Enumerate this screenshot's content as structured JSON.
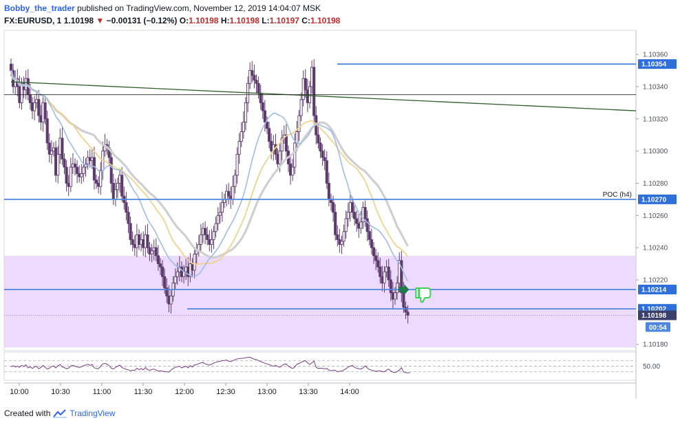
{
  "header": {
    "author": "Bobby_the_trader",
    "publish_text": "published on TradingView.com, November 12, 2019 14:04:07 MSK"
  },
  "ohlc": {
    "symbol": "FX:EURUSD, 1",
    "last": "1.10198",
    "arrow": "▼",
    "change": "−0.00131 (−0.12%)",
    "o_label": "O:",
    "o": "1.10198",
    "h_label": "H:",
    "h": "1.10198",
    "l_label": "L:",
    "l": "1.10197",
    "c_label": "C:",
    "c": "1.10198"
  },
  "footer": {
    "created_with": "Created with",
    "brand": "TradingView",
    "icon": "tradingview-cloud-icon"
  },
  "colors": {
    "candle": "#5d3a6e",
    "zone": "#e9d5fb",
    "level_line": "#4f86e0",
    "trend_line": "#2e5d2a",
    "sma_gray": "#cfcfcf",
    "sma_yellow": "#f2d28c",
    "sma_blue": "#9fbce8",
    "rsi": "#7a3b86",
    "label_bg": "#2f6fdb",
    "arrow_green": "#1f7a4a",
    "thumb_green": "#39d353"
  },
  "chart_data": {
    "type": "candlestick",
    "title": "",
    "x_ticks": [
      "10:00",
      "10:30",
      "11:00",
      "11:30",
      "12:00",
      "12:30",
      "13:00",
      "13:30",
      "14:00"
    ],
    "y_ticks": [
      "1.10360",
      "1.10340",
      "1.10320",
      "1.10300",
      "1.10280",
      "1.10260",
      "1.10240",
      "1.10220",
      "1.10180"
    ],
    "ylim": [
      1.10176,
      1.10375
    ],
    "price_labels": [
      {
        "name": "resistance",
        "value": 1.10354,
        "text": "1.10354"
      },
      {
        "name": "poc",
        "value": 1.1027,
        "text": "1.10270"
      },
      {
        "name": "level-mid",
        "value": 1.10214,
        "text": "1.10214"
      },
      {
        "name": "level-low",
        "value": 1.10202,
        "text": "1.10202"
      },
      {
        "name": "last-price",
        "value": 1.10198,
        "text": "1.10198"
      }
    ],
    "countdown": "00:54",
    "poc_text": "POC (h4)",
    "zone": {
      "top": 1.10235,
      "bottom": 1.10178
    },
    "trendline": {
      "from": {
        "time": "09:54",
        "price": 1.10343
      },
      "to": {
        "time": "14:48",
        "price": 1.10325
      }
    },
    "thin_hline": 1.10335,
    "rsi_level_label": "50.00",
    "rsi_levels": [
      70,
      50,
      30
    ],
    "close_series_step_min": 1,
    "close_series_start": "09:54",
    "closes": [
      1.1035,
      1.1034,
      1.10345,
      1.1034,
      1.1033,
      1.10342,
      1.10338,
      1.10345,
      1.10335,
      1.1033,
      1.10325,
      1.1033,
      1.10332,
      1.10322,
      1.10318,
      1.1033,
      1.1032,
      1.10305,
      1.10298,
      1.103,
      1.10302,
      1.10285,
      1.10298,
      1.10308,
      1.10295,
      1.1029,
      1.1028,
      1.10278,
      1.1029,
      1.10292,
      1.1029,
      1.10286,
      1.10284,
      1.10286,
      1.1029,
      1.10292,
      1.10296,
      1.10294,
      1.10296,
      1.10282,
      1.1028,
      1.10278,
      1.10288,
      1.103,
      1.10304,
      1.10302,
      1.10296,
      1.1028,
      1.1027,
      1.10276,
      1.1028,
      1.10285,
      1.10272,
      1.10268,
      1.10262,
      1.10255,
      1.10245,
      1.10242,
      1.1024,
      1.10248,
      1.10242,
      1.10245,
      1.1024,
      1.10248,
      1.1024,
      1.10236,
      1.10238,
      1.1024,
      1.10235,
      1.1023,
      1.10228,
      1.10222,
      1.10215,
      1.1021,
      1.10205,
      1.1021,
      1.10218,
      1.10222,
      1.10225,
      1.10228,
      1.10222,
      1.10225,
      1.10228,
      1.10222,
      1.1023,
      1.10226,
      1.10236,
      1.10238,
      1.10242,
      1.10248,
      1.10252,
      1.10248,
      1.10245,
      1.10242,
      1.10245,
      1.1025,
      1.10255,
      1.1026,
      1.10262,
      1.10268,
      1.1027,
      1.10275,
      1.10272,
      1.1027,
      1.10278,
      1.10285,
      1.10298,
      1.10306,
      1.10312,
      1.10318,
      1.1033,
      1.10342,
      1.1035,
      1.10347,
      1.10344,
      1.10342,
      1.10336,
      1.1033,
      1.10325,
      1.10318,
      1.10314,
      1.10306,
      1.103,
      1.10304,
      1.10298,
      1.10292,
      1.103,
      1.10308,
      1.1031,
      1.103,
      1.10292,
      1.10285,
      1.1029,
      1.10305,
      1.10312,
      1.10322,
      1.10332,
      1.10345,
      1.10338,
      1.1033,
      1.1034,
      1.10352,
      1.10322,
      1.1031,
      1.10305,
      1.103,
      1.10296,
      1.10294,
      1.1028,
      1.1027,
      1.10268,
      1.10262,
      1.10248,
      1.10245,
      1.10242,
      1.10244,
      1.1025,
      1.10258,
      1.10262,
      1.10268,
      1.10262,
      1.10258,
      1.10255,
      1.10252,
      1.10256,
      1.10265,
      1.10258,
      1.1025,
      1.10245,
      1.1024,
      1.10235,
      1.10232,
      1.10228,
      1.10222,
      1.10218,
      1.10225,
      1.10228,
      1.1022,
      1.10212,
      1.10208,
      1.10212,
      1.10218,
      1.10232,
      1.10212,
      1.10203,
      1.102,
      1.10198
    ],
    "rsi_values": [
      48,
      52,
      47,
      50,
      46,
      53,
      49,
      55,
      44,
      48,
      42,
      47,
      50,
      41,
      45,
      53,
      46,
      40,
      43,
      49,
      51,
      44,
      52,
      56,
      47,
      45,
      41,
      43,
      51,
      53,
      50,
      47,
      45,
      48,
      52,
      54,
      57,
      53,
      56,
      44,
      42,
      41,
      50,
      58,
      60,
      57,
      52,
      43,
      40,
      46,
      50,
      54,
      45,
      42,
      39,
      37,
      34,
      36,
      35,
      43,
      38,
      42,
      37,
      45,
      38,
      35,
      38,
      40,
      36,
      33,
      34,
      32,
      31,
      30,
      29,
      36,
      42,
      46,
      48,
      50,
      44,
      47,
      50,
      44,
      52,
      47,
      55,
      56,
      59,
      62,
      63,
      58,
      56,
      54,
      57,
      61,
      64,
      66,
      67,
      70,
      70,
      72,
      68,
      66,
      70,
      73,
      76,
      77,
      78,
      78,
      80,
      81,
      82,
      78,
      75,
      74,
      70,
      66,
      64,
      60,
      58,
      56,
      52,
      50,
      53,
      49,
      46,
      52,
      57,
      58,
      50,
      45,
      42,
      47,
      57,
      60,
      64,
      67,
      70,
      62,
      56,
      62,
      68,
      46,
      42,
      43,
      42,
      41,
      42,
      36,
      34,
      36,
      35,
      30,
      32,
      33,
      36,
      41,
      47,
      50,
      53,
      46,
      43,
      41,
      40,
      44,
      51,
      44,
      38,
      36,
      34,
      32,
      33,
      34,
      31,
      30,
      36,
      40,
      33,
      29,
      27,
      31,
      36,
      45,
      30,
      27,
      26,
      27
    ]
  }
}
